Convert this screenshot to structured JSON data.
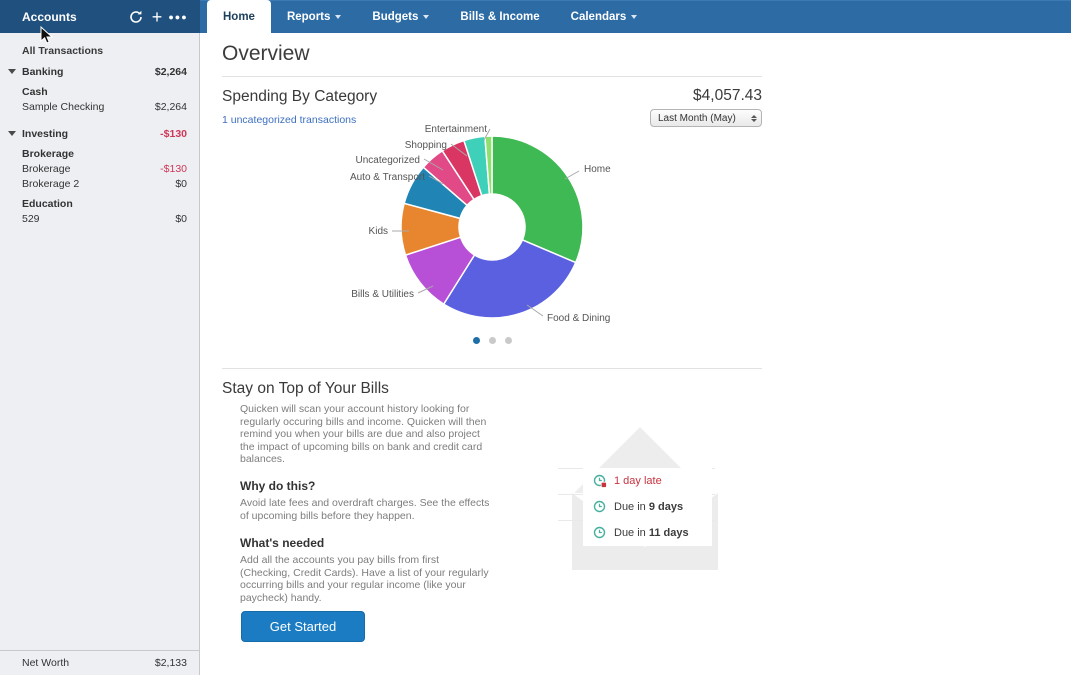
{
  "sidebar": {
    "title": "Accounts",
    "rows": [
      {
        "type": "item",
        "label": "All Transactions",
        "value": ""
      },
      {
        "type": "group",
        "label": "Banking",
        "value": "$2,264",
        "negative": false
      },
      {
        "type": "subgroup",
        "label": "Cash",
        "value": ""
      },
      {
        "type": "account",
        "label": "Sample Checking",
        "value": "$2,264",
        "negative": false
      },
      {
        "type": "group",
        "label": "Investing",
        "value": "-$130",
        "negative": true
      },
      {
        "type": "subgroup",
        "label": "Brokerage",
        "value": ""
      },
      {
        "type": "account",
        "label": "Brokerage",
        "value": "-$130",
        "negative": true
      },
      {
        "type": "account",
        "label": "Brokerage 2",
        "value": "$0",
        "negative": false
      },
      {
        "type": "subgroup",
        "label": "Education",
        "value": ""
      },
      {
        "type": "account",
        "label": "529",
        "value": "$0",
        "negative": false
      }
    ],
    "net_worth_label": "Net Worth",
    "net_worth_value": "$2,133"
  },
  "nav": {
    "tabs": [
      {
        "label": "Home",
        "active": true,
        "caret": false
      },
      {
        "label": "Reports",
        "active": false,
        "caret": true
      },
      {
        "label": "Budgets",
        "active": false,
        "caret": true
      },
      {
        "label": "Bills & Income",
        "active": false,
        "caret": false
      },
      {
        "label": "Calendars",
        "active": false,
        "caret": true
      }
    ]
  },
  "page": {
    "title": "Overview"
  },
  "spending": {
    "heading": "Spending By Category",
    "total": "$4,057.43",
    "uncategorized_link": "1 uncategorized transactions",
    "period_select": "Last Month (May)"
  },
  "chart_data": {
    "type": "pie",
    "subtype": "donut",
    "title": "Spending By Category",
    "total": 4057.43,
    "total_label": "$4,057.43",
    "period": "Last Month (May)",
    "start_angle_deg": 0,
    "clockwise": true,
    "legend_position": "callout-labels",
    "slices": [
      {
        "label": "Home",
        "percent": 31.4,
        "color": "#3fb953"
      },
      {
        "label": "Food & Dining",
        "percent": 27.5,
        "color": "#5a60e0"
      },
      {
        "label": "Bills & Utilities",
        "percent": 11.1,
        "color": "#b750d6"
      },
      {
        "label": "Kids",
        "percent": 9.2,
        "color": "#e7862f"
      },
      {
        "label": "Auto & Transport",
        "percent": 7.2,
        "color": "#2085b5"
      },
      {
        "label": "Uncategorized",
        "percent": 4.4,
        "color": "#e14a86"
      },
      {
        "label": "Shopping",
        "percent": 4.2,
        "color": "#d93664"
      },
      {
        "label": "Entertainment",
        "percent": 3.75,
        "color": "#3ed0b8"
      },
      {
        "label": "",
        "percent": 1.25,
        "color": "#8ee06e"
      }
    ]
  },
  "carousel": {
    "count": 3,
    "active": 0
  },
  "bills": {
    "heading": "Stay on Top of Your Bills",
    "intro": "Quicken will scan your account history looking for regularly occuring bills and income. Quicken will then remind you when your bills are due and also project the impact of upcoming bills on bank and credit card balances.",
    "why_heading": "Why do this?",
    "why_text": "Avoid late fees and overdraft charges. See the effects of upcoming bills before they happen.",
    "needed_heading": "What's needed",
    "needed_text": "Add all the accounts you pay bills from first (Checking, Credit Cards). Have a list of your regularly occurring bills and your regular income (like your paycheck) handy.",
    "button": "Get Started",
    "reminders": [
      {
        "prefix": "1 day late",
        "bold": "",
        "late": true
      },
      {
        "prefix": "Due in ",
        "bold": "9 days",
        "late": false
      },
      {
        "prefix": "Due in ",
        "bold": "11 days",
        "late": false
      }
    ]
  },
  "colors": {
    "nav_blue": "#2d6ba5",
    "sidebar_header_blue": "#20507e",
    "accent_button_blue": "#1b7cc4",
    "link_blue": "#3d6fbe",
    "negative_red": "#ce3757",
    "late_red": "#c9323f",
    "clock_teal": "#45b09e",
    "active_dot_blue": "#1e6fa8"
  }
}
